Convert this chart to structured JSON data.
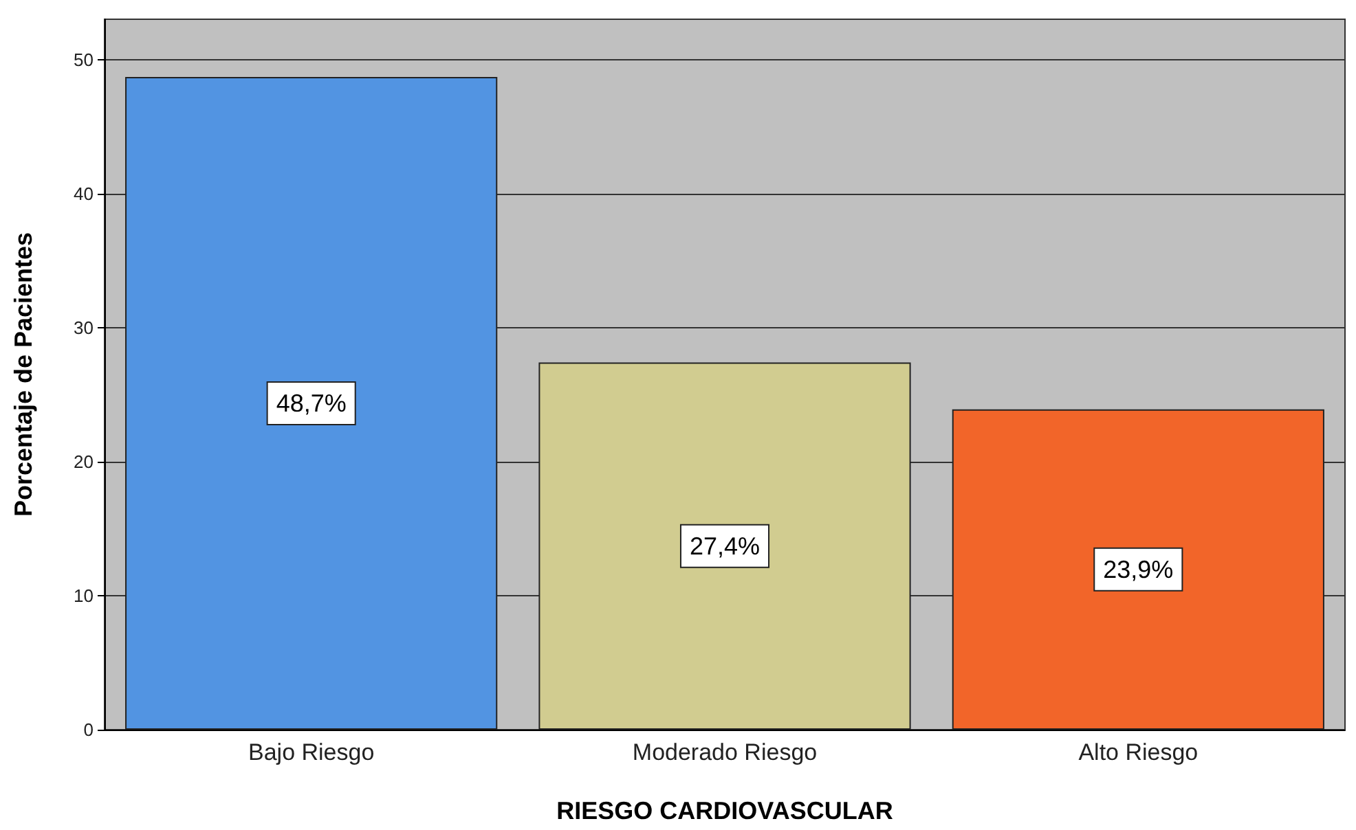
{
  "chart_data": {
    "type": "bar",
    "xlabel": "RIESGO CARDIOVASCULAR",
    "ylabel": "Porcentaje de Pacientes",
    "categories": [
      "Bajo Riesgo",
      "Moderado Riesgo",
      "Alto Riesgo"
    ],
    "values": [
      48.7,
      27.4,
      23.9
    ],
    "colors": [
      "#5294e2",
      "#d1cc90",
      "#f26529"
    ],
    "value_labels": [
      "48,7%",
      "27,4%",
      "23,9%"
    ],
    "ylim": [
      0,
      53
    ],
    "yticks": [
      0,
      10,
      20,
      30,
      40,
      50
    ],
    "grid": "y"
  }
}
